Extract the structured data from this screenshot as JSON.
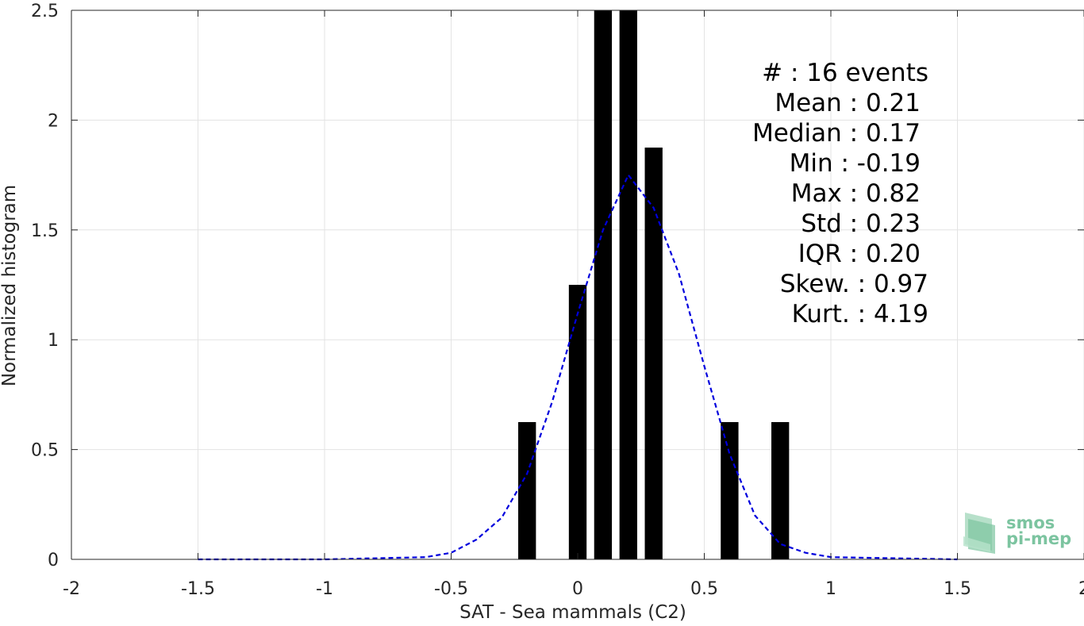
{
  "chart_data": {
    "type": "bar",
    "xlabel": "SAT - Sea mammals (C2)",
    "ylabel": "Normalized histogram",
    "xlim": [
      -2,
      2
    ],
    "ylim": [
      0,
      2.5
    ],
    "xticks": [
      -2,
      -1.5,
      -1,
      -0.5,
      0,
      0.5,
      1,
      1.5,
      2
    ],
    "xtick_labels": [
      "-2",
      "-1.5",
      "-1",
      "-0.5",
      "0",
      "0.5",
      "1",
      "1.5",
      "2"
    ],
    "yticks": [
      0,
      0.5,
      1,
      1.5,
      2,
      2.5
    ],
    "ytick_labels": [
      "0",
      "0.5",
      "1",
      "1.5",
      "2",
      "2.5"
    ],
    "grid": true,
    "bar_width": 0.07,
    "bars": [
      {
        "x": -0.2,
        "value": 0.625
      },
      {
        "x": 0.0,
        "value": 1.25
      },
      {
        "x": 0.1,
        "value": 2.5
      },
      {
        "x": 0.2,
        "value": 2.5
      },
      {
        "x": 0.3,
        "value": 1.875
      },
      {
        "x": 0.6,
        "value": 0.625
      },
      {
        "x": 0.8,
        "value": 0.625
      }
    ],
    "fit_curve": {
      "style": "dashed",
      "color": "#0000dd",
      "x": [
        -1.5,
        -1.0,
        -0.6,
        -0.5,
        -0.4,
        -0.3,
        -0.2,
        -0.1,
        0.0,
        0.1,
        0.2,
        0.3,
        0.4,
        0.5,
        0.6,
        0.7,
        0.8,
        0.9,
        1.0,
        1.5
      ],
      "y": [
        0.0,
        0.0,
        0.01,
        0.03,
        0.09,
        0.19,
        0.39,
        0.72,
        1.12,
        1.5,
        1.75,
        1.6,
        1.3,
        0.88,
        0.48,
        0.2,
        0.07,
        0.03,
        0.01,
        0.0
      ]
    },
    "bar_color": "#000000"
  },
  "stats": [
    {
      "label": "#  ",
      "value": ": 16 events"
    },
    {
      "label": "Mean ",
      "value": ": 0.21"
    },
    {
      "label": "Median ",
      "value": ": 0.17"
    },
    {
      "label": "Min ",
      "value": ": -0.19"
    },
    {
      "label": "Max ",
      "value": ": 0.82"
    },
    {
      "label": "Std ",
      "value": ": 0.23"
    },
    {
      "label": "IQR ",
      "value": ": 0.20"
    },
    {
      "label": "Skew. ",
      "value": ": 0.97"
    },
    {
      "label": "Kurt. ",
      "value": ": 4.19"
    }
  ],
  "logo": {
    "line1": "smos",
    "line2": "pi-mep",
    "color": "#7cc4a0"
  }
}
